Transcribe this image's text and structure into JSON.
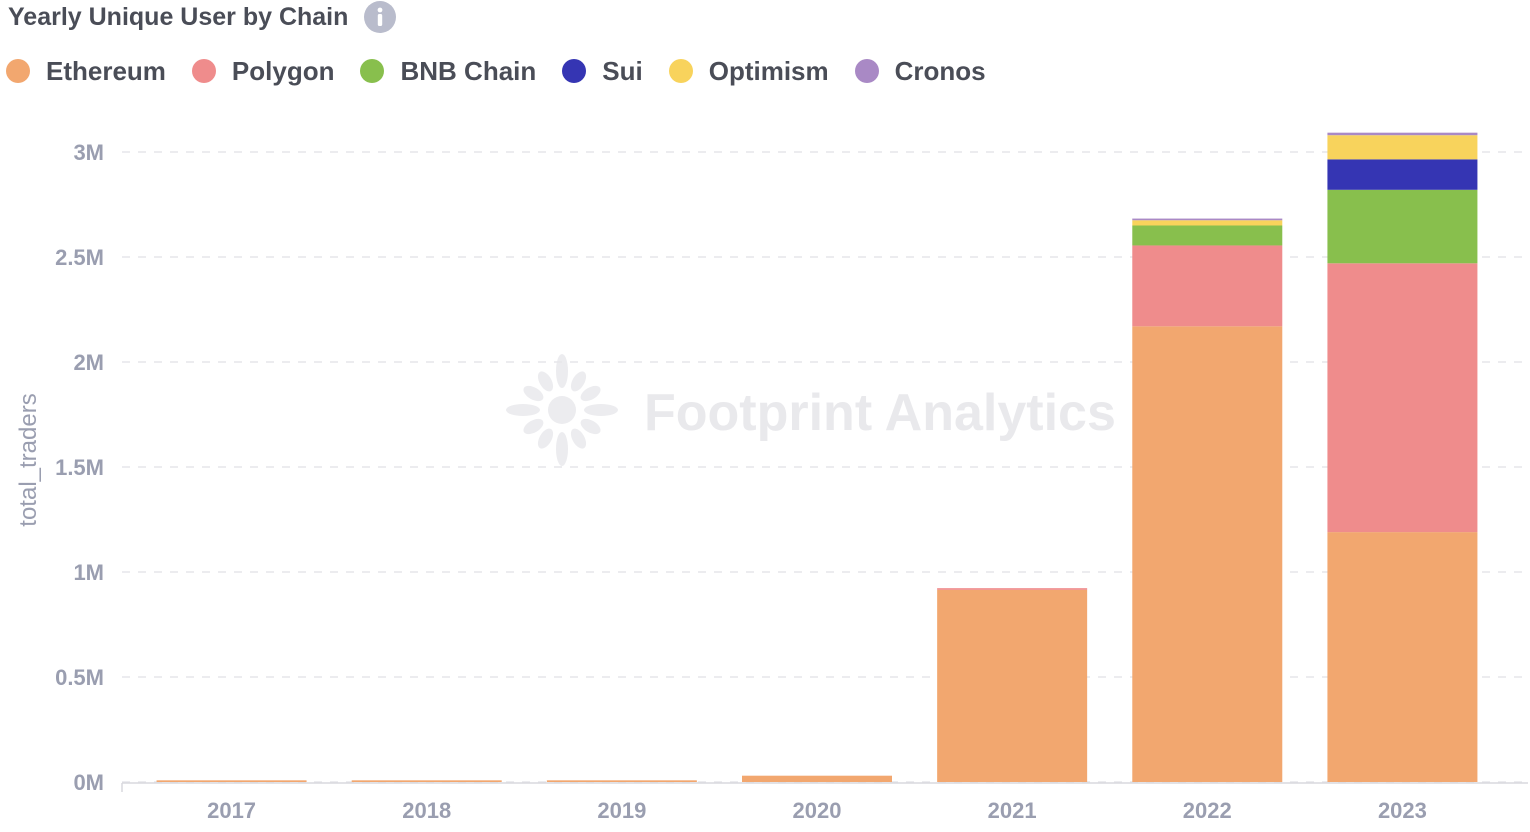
{
  "title": "Yearly Unique User by Chain",
  "watermark": "Footprint Analytics",
  "chart_data": {
    "type": "bar",
    "stacked": true,
    "title": "Yearly Unique User by Chain",
    "xlabel": "",
    "ylabel": "total_traders",
    "ylim": [
      0,
      3000000
    ],
    "yticks": [
      0,
      500000,
      1000000,
      1500000,
      2000000,
      2500000,
      3000000
    ],
    "ytick_labels": [
      "0M",
      "0.5M",
      "1M",
      "1.5M",
      "2M",
      "2.5M",
      "3M"
    ],
    "categories": [
      "2017",
      "2018",
      "2019",
      "2020",
      "2021",
      "2022",
      "2023"
    ],
    "legend_position": "top-left",
    "series": [
      {
        "name": "Ethereum",
        "color": "#f2a76f",
        "values": [
          8000,
          8000,
          8000,
          30000,
          915000,
          2170000,
          1190000
        ]
      },
      {
        "name": "Polygon",
        "color": "#ef8c8c",
        "values": [
          0,
          0,
          0,
          0,
          8000,
          385000,
          1280000
        ]
      },
      {
        "name": "BNB Chain",
        "color": "#88bf4d",
        "values": [
          0,
          0,
          0,
          0,
          0,
          95000,
          350000
        ]
      },
      {
        "name": "Sui",
        "color": "#3535b3",
        "values": [
          0,
          0,
          0,
          0,
          0,
          0,
          145000
        ]
      },
      {
        "name": "Optimism",
        "color": "#f8d35c",
        "values": [
          0,
          0,
          0,
          0,
          0,
          25000,
          115000
        ]
      },
      {
        "name": "Cronos",
        "color": "#a989c5",
        "values": [
          0,
          0,
          0,
          0,
          0,
          8000,
          12000
        ]
      }
    ]
  }
}
